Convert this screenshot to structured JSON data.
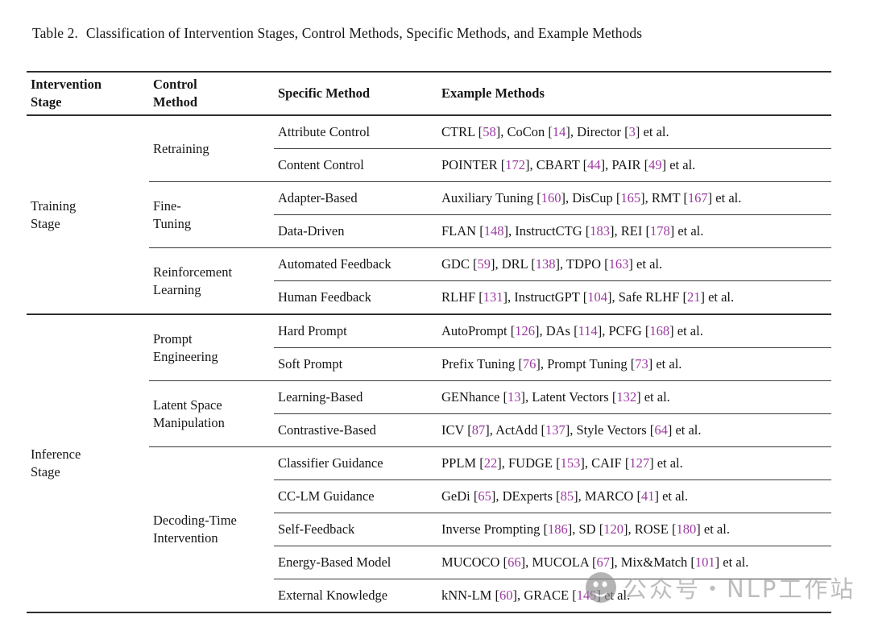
{
  "title": {
    "label": "Table 2.",
    "text": "Classification of Intervention Stages, Control Methods, Specific Methods, and Example Methods"
  },
  "colors": {
    "citation": "#9B3AA0",
    "rule_heavy": "#2e2e2e",
    "rule_light": "#3a3a3a",
    "text": "#161616",
    "watermark": "#ababab"
  },
  "table": {
    "headers": [
      "Intervention\nStage",
      "Control\nMethod",
      "Specific Method",
      "Example Methods"
    ],
    "stages": [
      {
        "stage": "Training\nStage",
        "groups": [
          {
            "control": "Retraining",
            "rows": [
              {
                "specific": "Attribute Control",
                "examples": "CTRL [58], CoCon [14], Director [3] et al."
              },
              {
                "specific": "Content Control",
                "examples": "POINTER [172], CBART [44], PAIR [49] et al."
              }
            ]
          },
          {
            "control": "Fine-\nTuning",
            "rows": [
              {
                "specific": "Adapter-Based",
                "examples": "Auxiliary Tuning [160], DisCup [165], RMT [167] et al."
              },
              {
                "specific": "Data-Driven",
                "examples": "FLAN [148], InstructCTG [183], REI [178] et al."
              }
            ]
          },
          {
            "control": "Reinforcement\nLearning",
            "rows": [
              {
                "specific": "Automated Feedback",
                "examples": "GDC [59], DRL [138], TDPO [163] et al."
              },
              {
                "specific": "Human Feedback",
                "examples": "RLHF [131], InstructGPT [104], Safe RLHF [21] et al."
              }
            ]
          }
        ]
      },
      {
        "stage": "Inference\nStage",
        "groups": [
          {
            "control": "Prompt\nEngineering",
            "rows": [
              {
                "specific": "Hard Prompt",
                "examples": "AutoPrompt [126], DAs [114], PCFG [168] et al."
              },
              {
                "specific": "Soft Prompt",
                "examples": "Prefix Tuning [76], Prompt Tuning [73] et al."
              }
            ]
          },
          {
            "control": "Latent Space\nManipulation",
            "rows": [
              {
                "specific": "Learning-Based",
                "examples": "GENhance [13], Latent Vectors [132] et al."
              },
              {
                "specific": "Contrastive-Based",
                "examples": "ICV [87], ActAdd [137], Style Vectors [64] et al."
              }
            ]
          },
          {
            "control": "Decoding-Time\nIntervention",
            "rows": [
              {
                "specific": "Classifier Guidance",
                "examples": "PPLM [22], FUDGE [153], CAIF [127] et al."
              },
              {
                "specific": "CC-LM Guidance",
                "examples": "GeDi [65], DExperts [85], MARCO [41] et al."
              },
              {
                "specific": "Self-Feedback",
                "examples": "Inverse Prompting [186], SD [120], ROSE [180] et al."
              },
              {
                "specific": "Energy-Based Model",
                "examples": "MUCOCO [66], MUCOLA [67], Mix&Match [101] et al."
              },
              {
                "specific": "External Knowledge",
                "examples": "kNN-LM [60], GRACE [149] et al."
              }
            ]
          }
        ]
      }
    ]
  },
  "watermark": {
    "icon": "wechat-icon",
    "text": "公众号・NLP工作站"
  }
}
